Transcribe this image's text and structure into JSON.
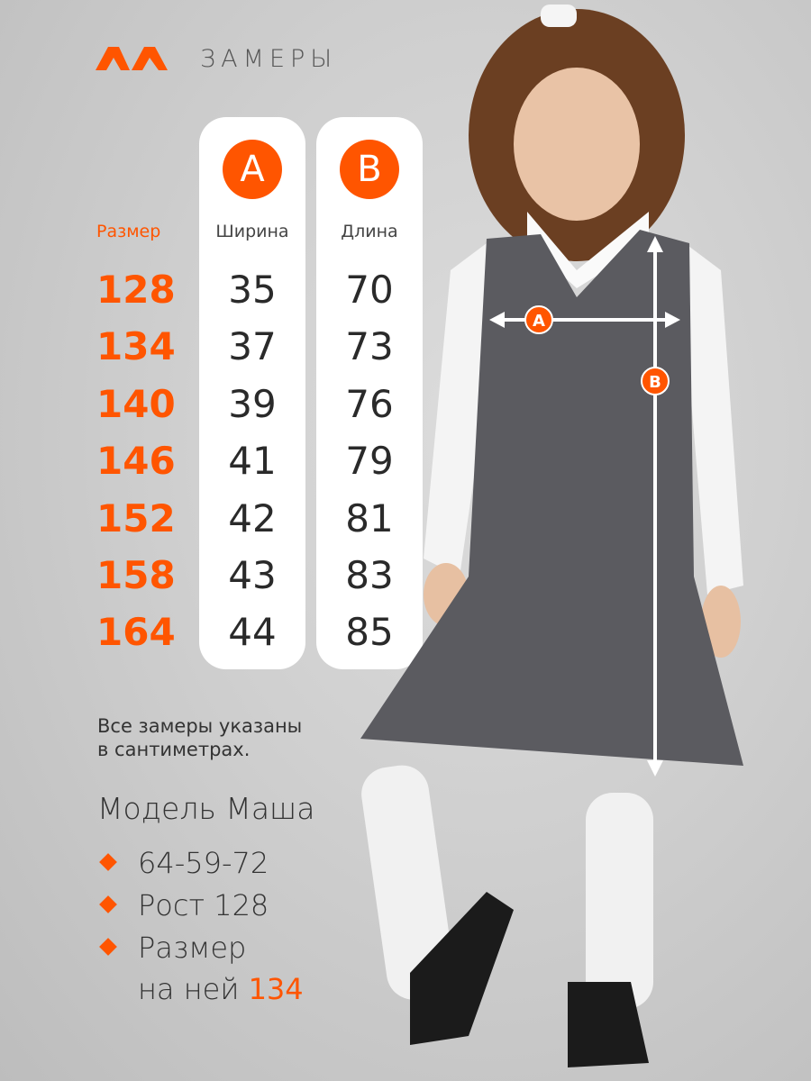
{
  "header": {
    "title": "ЗАМЕРЫ",
    "logo": "ΛΛ"
  },
  "table": {
    "size_header": "Размер",
    "col_a": {
      "letter": "A",
      "header": "Ширина"
    },
    "col_b": {
      "letter": "B",
      "header": "Длина"
    },
    "sizes": [
      "128",
      "134",
      "140",
      "146",
      "152",
      "158",
      "164"
    ],
    "width": [
      "35",
      "37",
      "39",
      "41",
      "42",
      "43",
      "44"
    ],
    "length": [
      "70",
      "73",
      "76",
      "79",
      "81",
      "83",
      "85"
    ]
  },
  "note": [
    "Все замеры указаны",
    "в сантиметрах."
  ],
  "model": {
    "title": "Модель Маша",
    "params": "64-59-72",
    "height": "Рост 128",
    "size_label_1": "Размер",
    "size_label_2": "на ней",
    "size_value": "134"
  },
  "photo_markers": {
    "a": "A",
    "b": "B"
  },
  "colors": {
    "accent": "#ff5500",
    "text": "#333333",
    "card": "#ffffff"
  }
}
